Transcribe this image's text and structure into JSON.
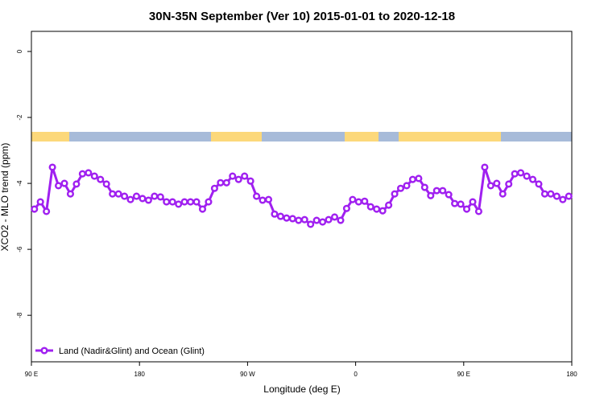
{
  "chart_data": {
    "type": "line",
    "title": "30N-35N September (Ver 10)   2015-01-01 to 2020-12-18",
    "x_label": "Longitude (deg E)",
    "y_label": "XCO2 - MLO trend (ppm)",
    "xlim": [
      90,
      540
    ],
    "ylim": [
      -9.41,
      0.61
    ],
    "xticks": [
      {
        "value": 90,
        "label": "90 E"
      },
      {
        "value": 180,
        "label": "180"
      },
      {
        "value": 270,
        "label": "90 W"
      },
      {
        "value": 360,
        "label": "0"
      },
      {
        "value": 450,
        "label": "90 E"
      },
      {
        "value": 540,
        "label": "180"
      }
    ],
    "yticks": [
      0,
      -2,
      -4,
      -6,
      -8
    ],
    "legend": "bottom-left",
    "x": [
      92.5,
      97.5,
      102.5,
      107.5,
      112.5,
      117.5,
      122.5,
      127.5,
      132.5,
      137.5,
      142.5,
      147.5,
      152.5,
      157.5,
      162.5,
      167.5,
      172.5,
      177.5,
      182.5,
      187.5,
      192.5,
      197.5,
      202.5,
      207.5,
      212.5,
      217.5,
      222.5,
      227.5,
      232.5,
      237.5,
      242.5,
      247.5,
      252.5,
      257.5,
      262.5,
      267.5,
      272.5,
      277.5,
      282.5,
      287.5,
      292.5,
      297.5,
      302.5,
      307.5,
      312.5,
      317.5,
      322.5,
      327.5,
      332.5,
      337.5,
      342.5,
      347.5,
      352.5,
      357.5,
      362.5,
      367.5,
      372.5,
      377.5,
      382.5,
      387.5,
      392.5,
      397.5,
      402.5,
      407.5,
      412.5,
      417.5,
      422.5,
      427.5,
      432.5,
      437.5,
      442.5,
      447.5,
      452.5,
      457.5,
      462.5,
      467.5,
      472.5,
      477.5,
      482.5,
      487.5,
      492.5,
      497.5,
      502.5,
      507.5,
      512.5,
      517.5,
      522.5,
      527.5,
      532.5,
      537.5
    ],
    "series": [
      {
        "name": "Land (Nadir&Glint) and Ocean (Glint)",
        "color": "#a020f0",
        "values": [
          -4.78,
          -4.56,
          -4.85,
          -3.51,
          -4.07,
          -4.0,
          -4.32,
          -4.02,
          -3.71,
          -3.68,
          -3.78,
          -3.88,
          -4.02,
          -4.32,
          -4.32,
          -4.39,
          -4.49,
          -4.39,
          -4.46,
          -4.51,
          -4.39,
          -4.41,
          -4.56,
          -4.56,
          -4.63,
          -4.56,
          -4.56,
          -4.56,
          -4.78,
          -4.56,
          -4.15,
          -3.98,
          -3.98,
          -3.78,
          -3.88,
          -3.78,
          -3.93,
          -4.39,
          -4.51,
          -4.49,
          -4.93,
          -5.0,
          -5.05,
          -5.07,
          -5.12,
          -5.1,
          -5.24,
          -5.12,
          -5.17,
          -5.1,
          -5.02,
          -5.12,
          -4.76,
          -4.49,
          -4.56,
          -4.54,
          -4.71,
          -4.78,
          -4.83,
          -4.66,
          -4.32,
          -4.15,
          -4.07,
          -3.88,
          -3.85,
          -4.12,
          -4.37,
          -4.22,
          -4.22,
          -4.34,
          -4.61,
          -4.63,
          -4.78,
          -4.56,
          -4.85,
          -3.51,
          -4.07,
          -4.0,
          -4.32,
          -4.02,
          -3.71,
          -3.68,
          -3.78,
          -3.88,
          -4.02,
          -4.32,
          -4.32,
          -4.39,
          -4.49,
          -4.39
        ]
      }
    ]
  }
}
